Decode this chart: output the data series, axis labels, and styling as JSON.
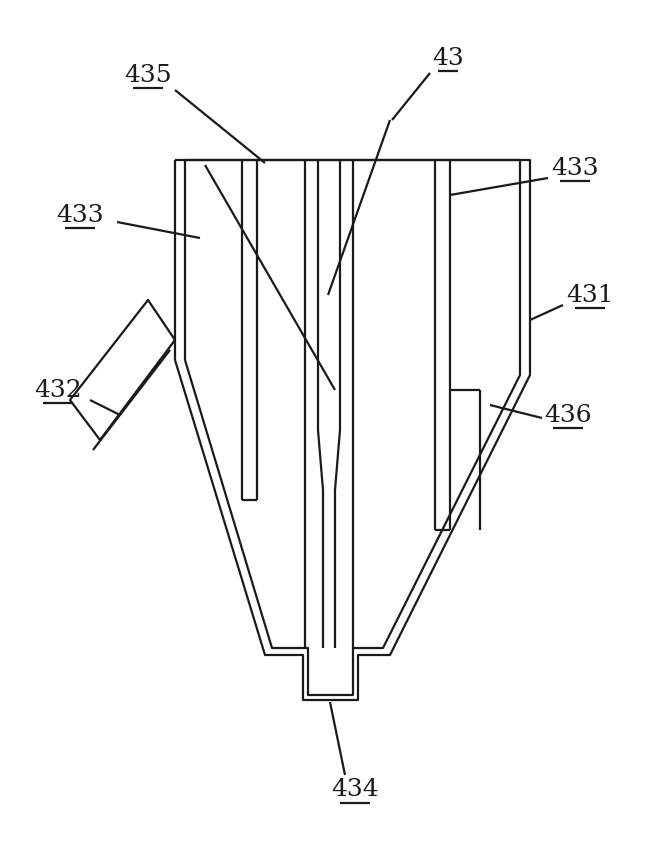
{
  "bg_color": "#ffffff",
  "line_color": "#1a1a1a",
  "lw": 1.6,
  "fig_width": 6.6,
  "fig_height": 8.56,
  "dpi": 100
}
